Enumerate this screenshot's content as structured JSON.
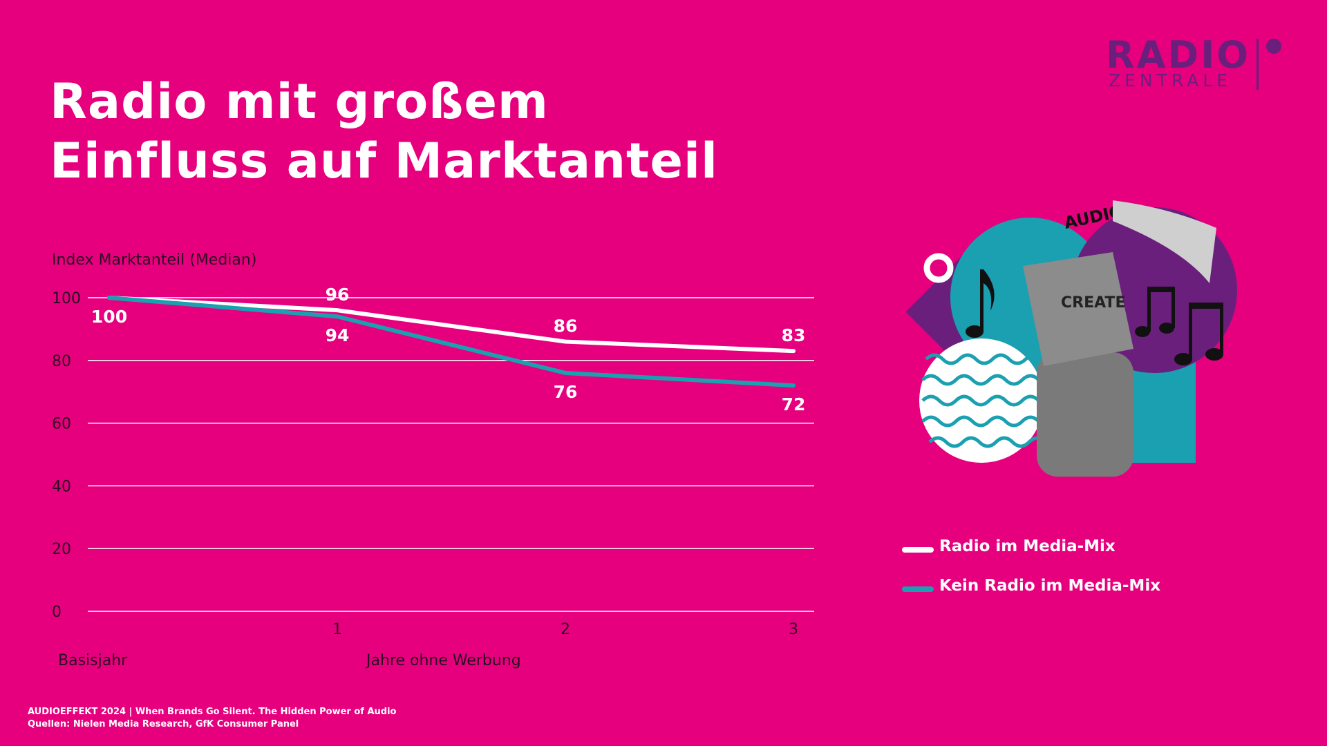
{
  "title_lines": [
    "Radio mit großem",
    "Einfluss auf Marktanteil"
  ],
  "logo": {
    "line1": "RADIO",
    "line2": "ZENTRALE"
  },
  "illustration": {
    "audio_text": "AUDIO",
    "box_text": "CREATE"
  },
  "colors": {
    "background": "#e6007e",
    "series_radio": "#ffffff",
    "series_no_radio": "#1aa0b0",
    "brand_purple": "#6b1f7c"
  },
  "chart_data": {
    "type": "line",
    "ylabel": "Index Marktanteil (Median)",
    "x": [
      0,
      1,
      2,
      3
    ],
    "x_tick_labels": [
      "1",
      "2",
      "3"
    ],
    "x_start_label": "Basisjahr",
    "xlabel": "Jahre ohne Werbung",
    "ylim": [
      0,
      100
    ],
    "y_ticks": [
      0,
      20,
      40,
      60,
      80,
      100
    ],
    "grid": true,
    "legend_position": "right",
    "series": [
      {
        "name": "Radio im Media-Mix",
        "values": [
          100,
          96,
          86,
          83
        ],
        "color": "#ffffff"
      },
      {
        "name": "Kein Radio im Media-Mix",
        "values": [
          100,
          94,
          76,
          72
        ],
        "color": "#1aa0b0"
      }
    ]
  },
  "footer": {
    "line1": "AUDIOEFFEKT 2024 | When Brands Go Silent. The Hidden Power of Audio",
    "line2": "Quellen: Nielen Media Research, GfK Consumer Panel"
  }
}
